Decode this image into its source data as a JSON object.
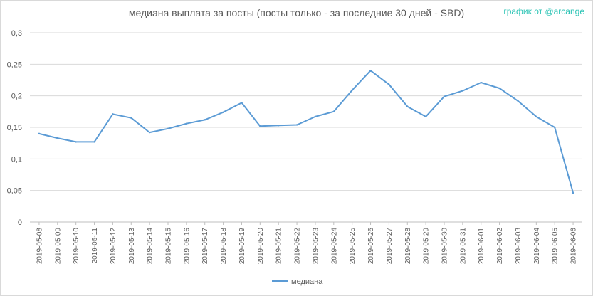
{
  "credit": "график от @arcange",
  "chart_data": {
    "type": "line",
    "title": "медиана выплата за посты  (посты только - за последние 30 дней - SBD)",
    "xlabel": "",
    "ylabel": "",
    "ylim": [
      0,
      0.3
    ],
    "yticks": [
      "0",
      "0,05",
      "0,1",
      "0,15",
      "0,2",
      "0,25",
      "0,3"
    ],
    "grid": true,
    "legend": "bottom",
    "categories": [
      "2019-05-08",
      "2019-05-09",
      "2019-05-10",
      "2019-05-11",
      "2019-05-12",
      "2019-05-13",
      "2019-05-14",
      "2019-05-15",
      "2019-05-16",
      "2019-05-17",
      "2019-05-18",
      "2019-05-19",
      "2019-05-20",
      "2019-05-21",
      "2019-05-22",
      "2019-05-23",
      "2019-05-24",
      "2019-05-25",
      "2019-05-26",
      "2019-05-27",
      "2019-05-28",
      "2019-05-29",
      "2019-05-30",
      "2019-05-31",
      "2019-06-01",
      "2019-06-02",
      "2019-06-03",
      "2019-06-04",
      "2019-06-05",
      "2019-06-06"
    ],
    "series": [
      {
        "name": "медиана",
        "color": "#5b9bd5",
        "values": [
          0.14,
          0.133,
          0.127,
          0.127,
          0.171,
          0.165,
          0.142,
          0.148,
          0.156,
          0.162,
          0.174,
          0.189,
          0.152,
          0.153,
          0.154,
          0.167,
          0.175,
          0.209,
          0.24,
          0.218,
          0.183,
          0.167,
          0.199,
          0.208,
          0.221,
          0.212,
          0.192,
          0.167,
          0.15,
          0.046
        ]
      }
    ]
  }
}
